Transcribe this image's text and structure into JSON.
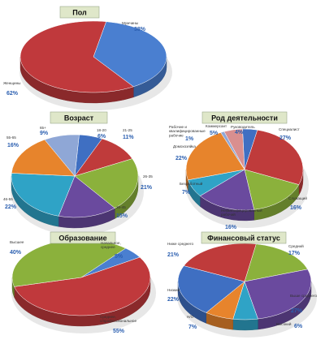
{
  "chart_data": [
    {
      "type": "pie",
      "title": "Пол",
      "categories": [
        "Мужчины",
        "Женщины"
      ],
      "values": [
        38,
        62
      ],
      "labels": [
        "38%",
        "62%"
      ],
      "colors": [
        "#4a7fd0",
        "#c0393c"
      ]
    },
    {
      "type": "pie",
      "title": "Возраст",
      "categories": [
        "18-20",
        "21-25",
        "26-35",
        "36-45",
        "46-55",
        "55-65",
        "65+"
      ],
      "values": [
        6,
        11,
        21,
        15,
        22,
        16,
        9
      ],
      "labels": [
        "6%",
        "11%",
        "21%",
        "15%",
        "22%",
        "16%",
        "9%"
      ],
      "colors": [
        "#3f6fc2",
        "#bf3b3b",
        "#8bb13c",
        "#6a4a9e",
        "#2fa3c6",
        "#e7842c",
        "#8fa7d6"
      ]
    },
    {
      "type": "pie",
      "title": "Род деятельности",
      "categories": [
        "Руководитель",
        "Специалист",
        "Служащий",
        "Неквалифицированный рабочий",
        "Безработный",
        "Домохозяйка",
        "Рабочие и квалифицированные рабочие",
        "Коммерсант"
      ],
      "values": [
        4,
        27,
        16,
        16,
        7,
        22,
        1,
        5
      ],
      "labels": [
        "4%",
        "27%",
        "16%",
        "16%",
        "7%",
        "22%",
        "1%",
        "5%"
      ],
      "colors": [
        "#3f6fc2",
        "#bf3b3b",
        "#8bb13c",
        "#6a4a9e",
        "#2fa3c6",
        "#e7842c",
        "#8fa7d6",
        "#d98f8f"
      ]
    },
    {
      "type": "pie",
      "title": "Образование",
      "categories": [
        "Начальное, среднее",
        "Среднее, с/профессиональное",
        "Высшее"
      ],
      "values": [
        5,
        55,
        40
      ],
      "labels": [
        "5%",
        "55%",
        "40%"
      ],
      "colors": [
        "#4a7fd0",
        "#c0393c",
        "#8bb13c"
      ]
    },
    {
      "type": "pie",
      "title": "Финансовый статус",
      "categories": [
        "Средний",
        "Выше среднего",
        "Высокий",
        "Н/О",
        "Низкий",
        "Ниже среднего"
      ],
      "values": [
        17,
        27,
        6,
        7,
        22,
        21
      ],
      "labels": [
        "17%",
        "27%",
        "6%",
        "7%",
        "22%",
        "21%"
      ],
      "colors": [
        "#8bb13c",
        "#6a4a9e",
        "#2fa3c6",
        "#e7842c",
        "#3f6fc2",
        "#bf3b3b"
      ]
    }
  ]
}
